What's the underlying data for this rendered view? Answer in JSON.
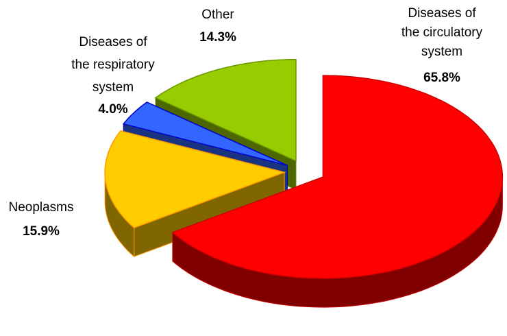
{
  "chart_data": {
    "type": "pie3d",
    "categories": [
      "Diseases of\nthe circulatory\nsystem",
      "Neoplasms",
      "Diseases of\nthe respiratory\nsystem",
      "Other"
    ],
    "values": [
      65.8,
      15.9,
      4.0,
      14.3
    ],
    "value_labels": [
      "65.8%",
      "15.9%",
      "4.0%",
      "14.3%"
    ],
    "colors": [
      "#ff0000",
      "#ffcc00",
      "#3366ff",
      "#99cc00"
    ],
    "edge_colors": [
      "#cc0000",
      "#ff9900",
      "#0000cc",
      "#669900"
    ]
  }
}
